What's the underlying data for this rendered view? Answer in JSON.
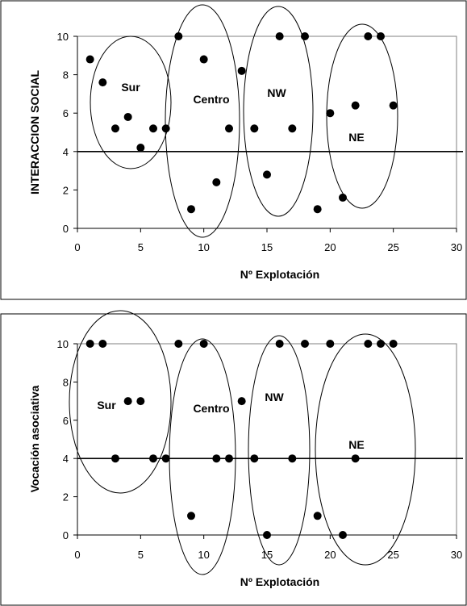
{
  "chart_data": [
    {
      "type": "scatter",
      "xlabel": "Nº Explotación",
      "ylabel": "INTERACCION SOCIAL",
      "xlim": [
        0,
        30
      ],
      "ylim": [
        0,
        10
      ],
      "xticks": [
        "0",
        "5",
        "10",
        "15",
        "20",
        "25",
        "30"
      ],
      "yticks": [
        "0",
        "2",
        "4",
        "6",
        "8",
        "10"
      ],
      "threshold": 4,
      "region_labels": [
        "Sur",
        "Centro",
        "NW",
        "NE"
      ],
      "points": [
        [
          1,
          8.8
        ],
        [
          2,
          7.6
        ],
        [
          3,
          5.2
        ],
        [
          4,
          5.8
        ],
        [
          5,
          4.2
        ],
        [
          6,
          5.2
        ],
        [
          7,
          5.2
        ],
        [
          8,
          10
        ],
        [
          9,
          1
        ],
        [
          10,
          8.8
        ],
        [
          11,
          2.4
        ],
        [
          12,
          5.2
        ],
        [
          13,
          8.2
        ],
        [
          14,
          5.2
        ],
        [
          15,
          2.8
        ],
        [
          16,
          10
        ],
        [
          17,
          5.2
        ],
        [
          18,
          10
        ],
        [
          19,
          1
        ],
        [
          20,
          6
        ],
        [
          21,
          1.6
        ],
        [
          22,
          6.4
        ],
        [
          23,
          10
        ],
        [
          24,
          10
        ],
        [
          25,
          6.4
        ]
      ]
    },
    {
      "type": "scatter",
      "xlabel": "Nº Explotación",
      "ylabel": "Vocación asociativa",
      "xlim": [
        0,
        30
      ],
      "ylim": [
        0,
        10
      ],
      "xticks": [
        "0",
        "5",
        "10",
        "15",
        "20",
        "25",
        "30"
      ],
      "yticks": [
        "0",
        "2",
        "4",
        "6",
        "8",
        "10"
      ],
      "threshold": 4,
      "region_labels": [
        "Sur",
        "Centro",
        "NW",
        "NE"
      ],
      "points": [
        [
          1,
          10
        ],
        [
          2,
          10
        ],
        [
          3,
          4
        ],
        [
          4,
          7
        ],
        [
          5,
          7
        ],
        [
          6,
          4
        ],
        [
          7,
          4
        ],
        [
          8,
          10
        ],
        [
          9,
          1
        ],
        [
          10,
          10
        ],
        [
          11,
          4
        ],
        [
          12,
          4
        ],
        [
          13,
          7
        ],
        [
          14,
          4
        ],
        [
          15,
          0
        ],
        [
          16,
          10
        ],
        [
          17,
          4
        ],
        [
          18,
          10
        ],
        [
          19,
          1
        ],
        [
          20,
          10
        ],
        [
          21,
          0
        ],
        [
          22,
          4
        ],
        [
          23,
          10
        ],
        [
          24,
          10
        ],
        [
          25,
          10
        ]
      ]
    }
  ]
}
